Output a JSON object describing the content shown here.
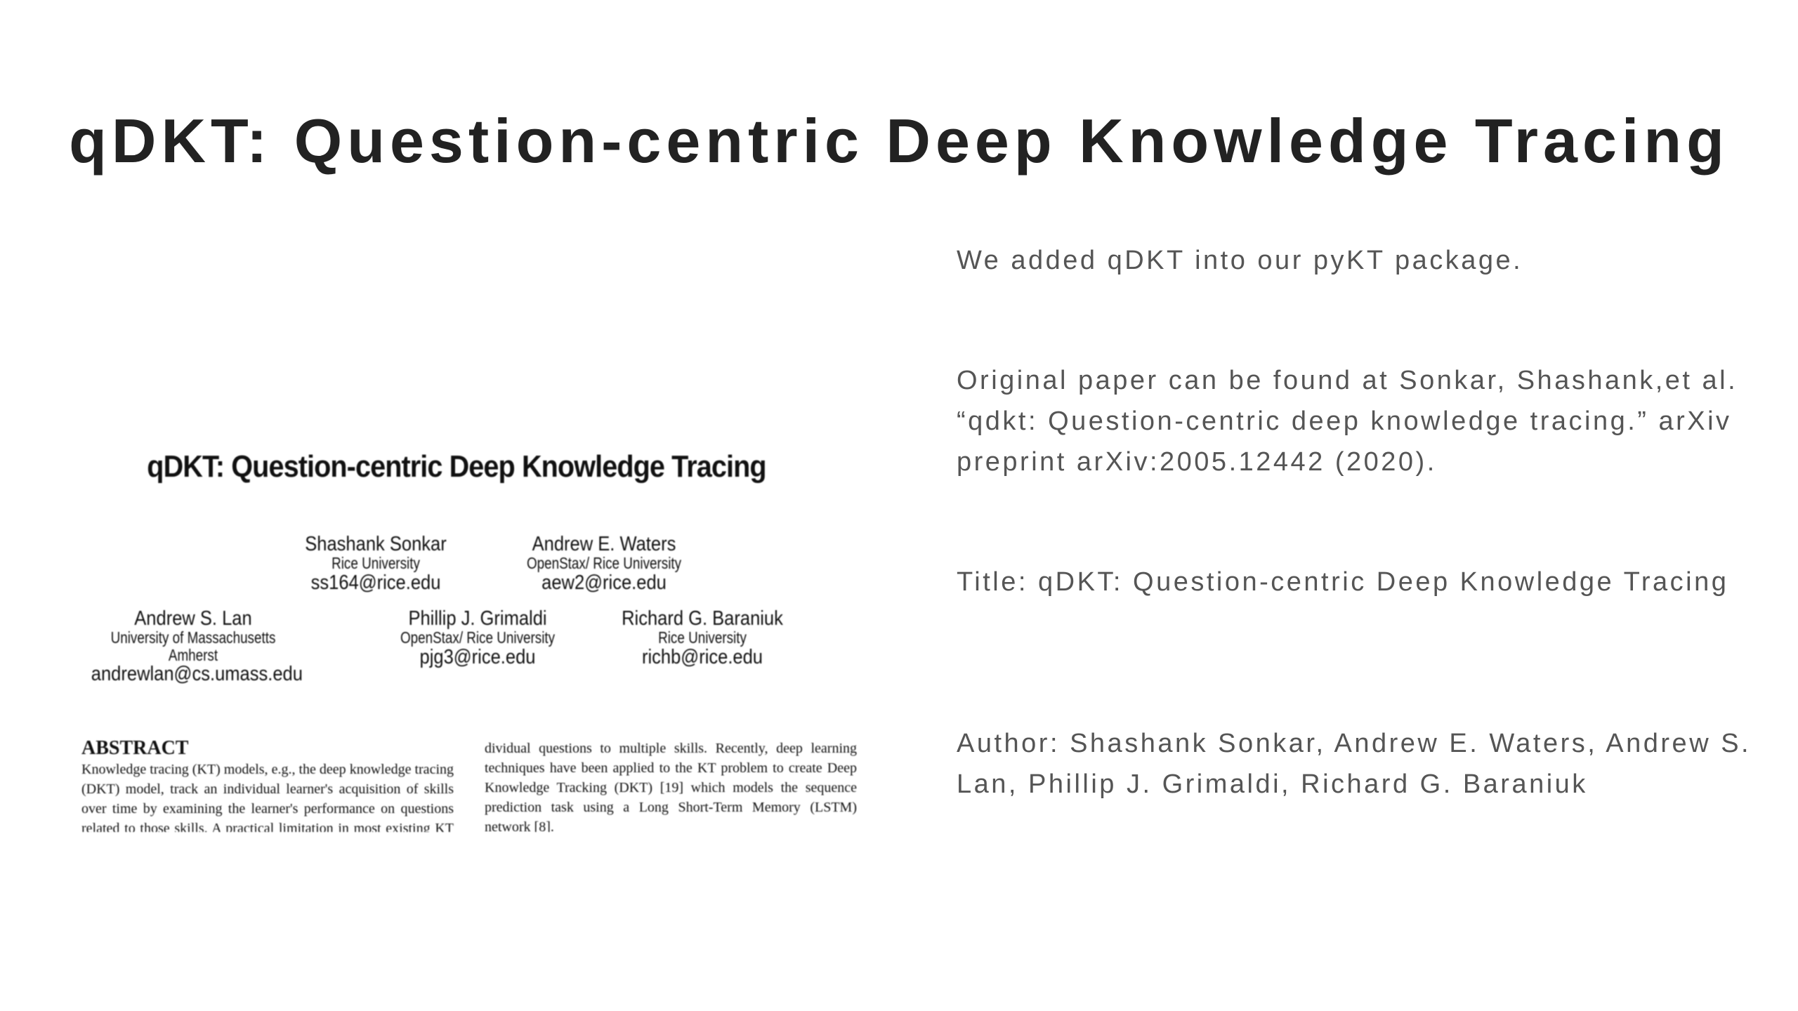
{
  "slide": {
    "title": "qDKT: Question-centric Deep Knowledge Tracing"
  },
  "paper": {
    "title": "qDKT: Question-centric Deep Knowledge Tracing",
    "authors": [
      {
        "name": "Shashank Sonkar",
        "affiliation": "Rice University",
        "email": "ss164@rice.edu"
      },
      {
        "name": "Andrew E. Waters",
        "affiliation": "OpenStax/ Rice University",
        "email": "aew2@rice.edu"
      },
      {
        "name": "Andrew S. Lan",
        "affiliation": "University of Massachusetts\nAmherst",
        "email": "andrewlan@cs.umass.edu"
      },
      {
        "name": "Phillip J. Grimaldi",
        "affiliation": "OpenStax/ Rice University",
        "email": "pjg3@rice.edu"
      },
      {
        "name": "Richard G. Baraniuk",
        "affiliation": "Rice University",
        "email": "richb@rice.edu"
      }
    ],
    "abstract_heading": "ABSTRACT",
    "abstract_left": "Knowledge tracing (KT) models, e.g., the deep knowledge tracing (DKT) model, track an individual learner's acquisition of skills over time by examining the learner's performance on questions related to those skills. A practical limitation in most existing KT models is that all questions",
    "abstract_right": "dividual questions to multiple skills. Recently, deep learning techniques have been applied to the KT problem to create Deep Knowledge Tracking (DKT) [19] which models the sequence prediction task using a Long Short-Term Memory (LSTM) network [8]."
  },
  "info": {
    "added": "We added qDKT into our pyKT package.",
    "original": "Original paper can be found at Sonkar, Shashank,et al.  “qdkt: Question-centric deep knowledge tracing.” arXiv preprint arXiv:2005.12442 (2020).",
    "title_line": "Title: qDKT: Question-centric Deep Knowledge Tracing",
    "author_line": " Author: Shashank Sonkar, Andrew E. Waters, Andrew S. Lan, Phillip J. Grimaldi, Richard G. Baraniuk"
  }
}
